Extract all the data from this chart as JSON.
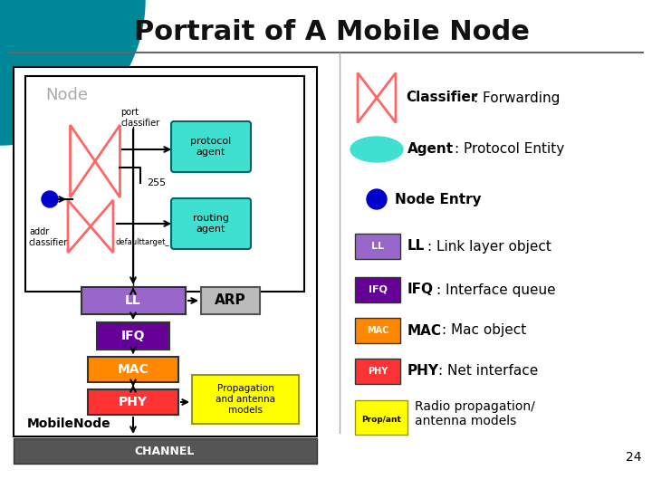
{
  "title": "Portrait of A Mobile Node",
  "bg_color": "#ffffff",
  "node_label": "Node",
  "mobilenode_label": "MobileNode",
  "channel_label": "CHANNEL",
  "protocol_agent_label": "protocol\nagent",
  "routing_agent_label": "routing\nagent",
  "arp_label": "ARP",
  "ll_label": "LL",
  "ifq_label": "IFQ",
  "mac_label": "MAC",
  "phy_label": "PHY",
  "port_classifier_label": "port\nclassifier",
  "addr_classifier_label": "addr\nclassifier",
  "default_target_label": "defaulttarget_",
  "num_255": "255",
  "prop_label": "Propagation\nand antenna\nmodels",
  "teal_color": "#40e0d0",
  "purple_color": "#9966cc",
  "dark_purple_color": "#660099",
  "orange_color": "#ff8800",
  "red_color": "#ff3333",
  "yellow_color": "#ffff00",
  "channel_color": "#555555",
  "classifier_red": "#ff6666",
  "blue_dot_color": "#0000cc",
  "arp_color": "#bbbbbb",
  "legend_num": "24",
  "legend_items": [
    {
      "label": "Classifier",
      "sublabel": ": Forwarding",
      "type": "classifier",
      "color": "#ff6666"
    },
    {
      "label": "Agent",
      "sublabel": ": Protocol Entity",
      "type": "ellipse",
      "color": "#40e0d0"
    },
    {
      "label": "Node Entry",
      "sublabel": "",
      "type": "dot",
      "color": "#0000cc"
    },
    {
      "label": "LL",
      "sublabel": ": Link layer object",
      "type": "rect",
      "color": "#9966cc"
    },
    {
      "label": "IFQ",
      "sublabel": ": Interface queue",
      "type": "rect",
      "color": "#660099"
    },
    {
      "label": "MAC",
      "sublabel": ": Mac object",
      "type": "rect",
      "color": "#ff8800"
    },
    {
      "label": "PHY",
      "sublabel": ": Net interface",
      "type": "rect",
      "color": "#ff3333"
    },
    {
      "label": "Prop/ant",
      "sublabel": "Radio propagation/\nantenna models",
      "type": "rect",
      "color": "#ffff00"
    }
  ]
}
